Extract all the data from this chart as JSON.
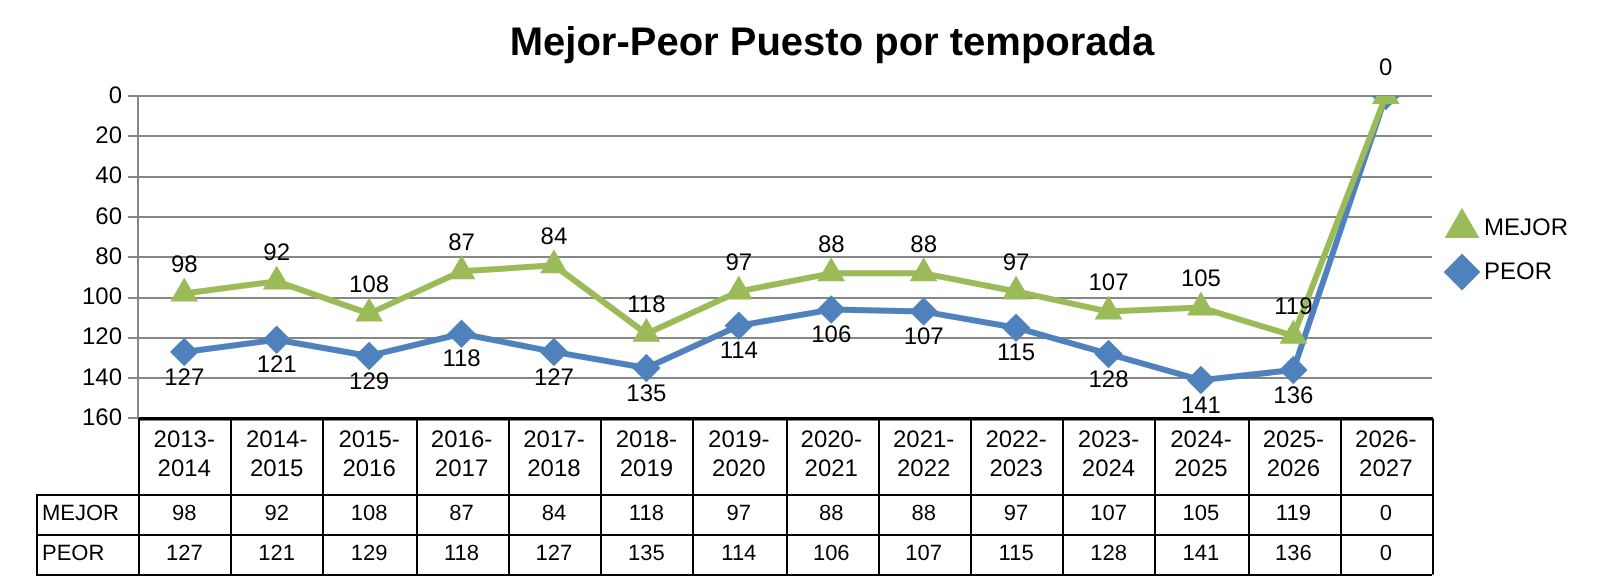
{
  "chart_data": {
    "type": "line",
    "title": "Mejor-Peor Puesto por temporada",
    "categories": [
      "2013-2014",
      "2014-2015",
      "2015-2016",
      "2016-2017",
      "2017-2018",
      "2018-2019",
      "2019-2020",
      "2020-2021",
      "2021-2022",
      "2022-2023",
      "2023-2024",
      "2024-2025",
      "2025-2026",
      "2026-2027"
    ],
    "series": [
      {
        "name": "MEJOR",
        "color": "#9bbb59",
        "marker": "triangle",
        "values": [
          98,
          92,
          108,
          87,
          84,
          118,
          97,
          88,
          88,
          97,
          107,
          105,
          119,
          0
        ]
      },
      {
        "name": "PEOR",
        "color": "#4f81bd",
        "marker": "diamond",
        "values": [
          127,
          121,
          129,
          118,
          127,
          135,
          114,
          106,
          107,
          115,
          128,
          141,
          136,
          0
        ]
      }
    ],
    "ylim": [
      160,
      0
    ],
    "yticks": [
      0,
      20,
      40,
      60,
      80,
      100,
      120,
      140,
      160
    ],
    "grid": "y",
    "legend": "right",
    "data_labels": true,
    "annotations": [
      {
        "text": "98",
        "x": "2013-2014",
        "y": 98
      },
      {
        "text": "92",
        "x": "2014-2015",
        "y": 92
      },
      {
        "text": "108",
        "x": "2015-2016",
        "y": 108
      },
      {
        "text": "87",
        "x": "2016-2017",
        "y": 87
      },
      {
        "text": "84",
        "x": "2017-2018",
        "y": 84
      },
      {
        "text": "118",
        "x": "2018-2019",
        "y": 118
      },
      {
        "text": "97",
        "x": "2019-2020",
        "y": 97
      },
      {
        "text": "88",
        "x": "2020-2021",
        "y": 88
      },
      {
        "text": "88",
        "x": "2021-2022",
        "y": 88
      },
      {
        "text": "97",
        "x": "2022-2023",
        "y": 97
      },
      {
        "text": "107",
        "x": "2023-2024",
        "y": 107
      },
      {
        "text": "105",
        "x": "2024-2025",
        "y": 105
      },
      {
        "text": "119",
        "x": "2025-2026",
        "y": 119
      },
      {
        "text": "0",
        "x": "2026-2027",
        "y": 0
      },
      {
        "text": "127",
        "x": "2013-2014",
        "y": 127
      },
      {
        "text": "121",
        "x": "2014-2015",
        "y": 121
      },
      {
        "text": "129",
        "x": "2015-2016",
        "y": 129
      },
      {
        "text": "118",
        "x": "2016-2017",
        "y": 118
      },
      {
        "text": "127",
        "x": "2017-2018",
        "y": 127
      },
      {
        "text": "135",
        "x": "2018-2019",
        "y": 135
      },
      {
        "text": "114",
        "x": "2019-2020",
        "y": 114
      },
      {
        "text": "106",
        "x": "2020-2021",
        "y": 106
      },
      {
        "text": "107",
        "x": "2021-2022",
        "y": 107
      },
      {
        "text": "115",
        "x": "2022-2023",
        "y": 115
      },
      {
        "text": "128",
        "x": "2023-2024",
        "y": 128
      },
      {
        "text": "141",
        "x": "2024-2025",
        "y": 141
      },
      {
        "text": "136",
        "x": "2025-2026",
        "y": 136
      }
    ]
  }
}
